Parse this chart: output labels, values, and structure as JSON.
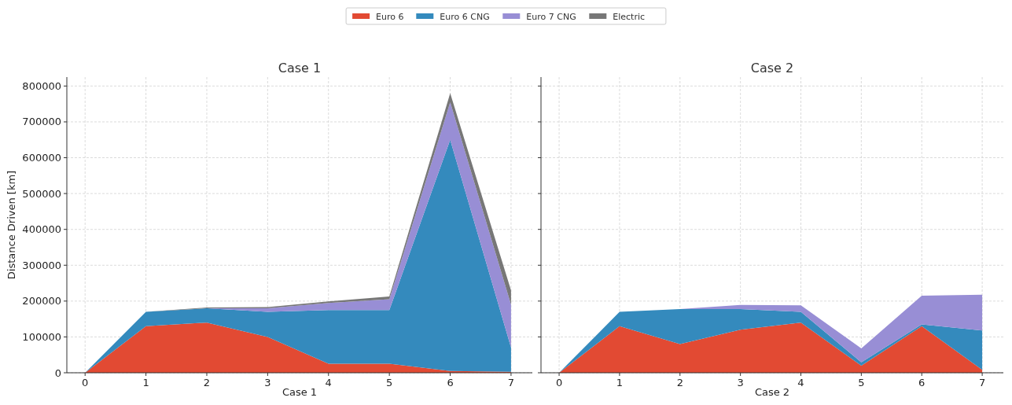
{
  "chart_data": [
    {
      "type": "area",
      "stacked": true,
      "title": "Case 1",
      "xlabel": "Case 1",
      "ylabel": "Distance Driven [km]",
      "x": [
        0,
        1,
        2,
        3,
        4,
        5,
        6,
        7
      ],
      "xlim": [
        -0.3,
        7.35
      ],
      "xticks": [
        0,
        1,
        2,
        3,
        4,
        5,
        6,
        7
      ],
      "ylim": [
        0,
        825000
      ],
      "yticks": [
        0,
        100000,
        200000,
        300000,
        400000,
        500000,
        600000,
        700000,
        800000
      ],
      "grid": true,
      "legend": "top",
      "series": [
        {
          "name": "Euro 6",
          "color": "#e24a33",
          "values": [
            0,
            130000,
            140000,
            100000,
            25000,
            25000,
            5000,
            3000
          ]
        },
        {
          "name": "Euro 6 CNG",
          "color": "#348abd",
          "values": [
            0,
            40000,
            40000,
            70000,
            150000,
            150000,
            645000,
            67000
          ]
        },
        {
          "name": "Euro 7 CNG",
          "color": "#988ed5",
          "values": [
            0,
            0,
            0,
            10000,
            20000,
            30000,
            105000,
            120000
          ]
        },
        {
          "name": "Electric",
          "color": "#777777",
          "values": [
            0,
            0,
            2000,
            3000,
            4000,
            8000,
            25000,
            40000
          ]
        }
      ]
    },
    {
      "type": "area",
      "stacked": true,
      "title": "Case 2",
      "xlabel": "Case 2",
      "x": [
        0,
        1,
        2,
        3,
        4,
        5,
        6,
        7
      ],
      "xlim": [
        -0.3,
        7.35
      ],
      "xticks": [
        0,
        1,
        2,
        3,
        4,
        5,
        6,
        7
      ],
      "ylim": [
        0,
        825000
      ],
      "yticks": [
        0,
        100000,
        200000,
        300000,
        400000,
        500000,
        600000,
        700000,
        800000
      ],
      "grid": true,
      "tick_labels": "x",
      "series": [
        {
          "color": "#e24a33",
          "values": [
            0,
            130000,
            80000,
            120000,
            140000,
            20000,
            130000,
            8000
          ]
        },
        {
          "color": "#348abd",
          "values": [
            0,
            40000,
            98000,
            58000,
            30000,
            9000,
            5000,
            110000
          ]
        },
        {
          "color": "#988ed5",
          "values": [
            0,
            0,
            0,
            11000,
            18000,
            39000,
            80000,
            100000
          ]
        }
      ]
    }
  ]
}
